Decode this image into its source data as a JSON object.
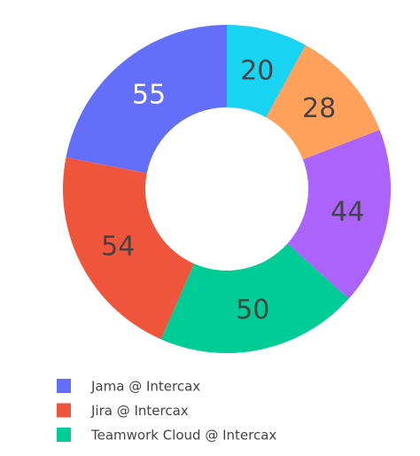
{
  "chart_data": {
    "type": "pie",
    "categories": [
      "Jama @ Intercax",
      "Jira @ Intercax",
      "Teamwork Cloud @ Intercax",
      null,
      null,
      null
    ],
    "values": [
      55,
      54,
      50,
      44,
      28,
      20
    ],
    "colors": [
      "#636efa",
      "#ef553b",
      "#00cc96",
      "#ab63fa",
      "#ffa15a",
      "#19d3f3"
    ]
  }
}
